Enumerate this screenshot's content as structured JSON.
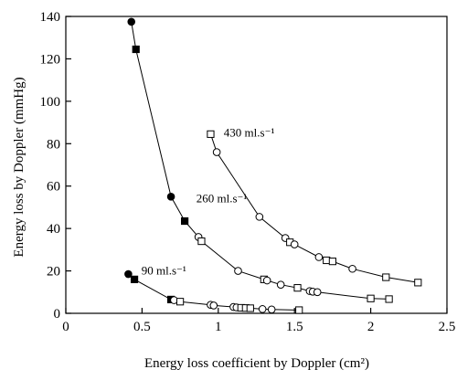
{
  "chart_data": {
    "type": "scatter",
    "xlabel": "Energy loss coefficient  by Doppler  (cm²)",
    "ylabel": "Energy loss by Doppler  (mmHg)",
    "xlim": [
      0,
      2.5
    ],
    "ylim": [
      0,
      140
    ],
    "xticks": [
      "0",
      "0.5",
      "1",
      "1.5",
      "2",
      "2.5"
    ],
    "yticks": [
      "0",
      "20",
      "40",
      "60",
      "80",
      "100",
      "120",
      "140"
    ],
    "grid": false,
    "legend": "none",
    "series": [
      {
        "name": "90 ml.s⁻¹",
        "points": [
          {
            "x": 0.41,
            "y": 18.5,
            "m": "circle-filled"
          },
          {
            "x": 0.45,
            "y": 16,
            "m": "square-filled"
          },
          {
            "x": 0.69,
            "y": 6.5,
            "m": "square-filled"
          },
          {
            "x": 0.71,
            "y": 6.2,
            "m": "circle-open"
          },
          {
            "x": 0.75,
            "y": 5.5,
            "m": "square-open"
          },
          {
            "x": 0.95,
            "y": 4,
            "m": "circle-open"
          },
          {
            "x": 0.97,
            "y": 3.7,
            "m": "circle-open"
          },
          {
            "x": 1.1,
            "y": 3,
            "m": "circle-open"
          },
          {
            "x": 1.12,
            "y": 2.8,
            "m": "circle-open"
          },
          {
            "x": 1.15,
            "y": 2.6,
            "m": "square-open"
          },
          {
            "x": 1.18,
            "y": 2.5,
            "m": "square-open"
          },
          {
            "x": 1.21,
            "y": 2.4,
            "m": "square-open"
          },
          {
            "x": 1.29,
            "y": 2,
            "m": "circle-open"
          },
          {
            "x": 1.35,
            "y": 1.8,
            "m": "circle-open"
          },
          {
            "x": 1.53,
            "y": 1.5,
            "m": "square-open"
          }
        ]
      },
      {
        "name": "260 ml.s⁻¹",
        "points": [
          {
            "x": 0.43,
            "y": 137.5,
            "m": "circle-filled"
          },
          {
            "x": 0.46,
            "y": 124.5,
            "m": "square-filled"
          },
          {
            "x": 0.69,
            "y": 55,
            "m": "circle-filled"
          },
          {
            "x": 0.78,
            "y": 43.5,
            "m": "square-filled"
          },
          {
            "x": 0.87,
            "y": 36,
            "m": "circle-open"
          },
          {
            "x": 0.89,
            "y": 34,
            "m": "square-open"
          },
          {
            "x": 1.13,
            "y": 20,
            "m": "circle-open"
          },
          {
            "x": 1.3,
            "y": 16,
            "m": "square-open"
          },
          {
            "x": 1.32,
            "y": 15.5,
            "m": "circle-open"
          },
          {
            "x": 1.41,
            "y": 13.5,
            "m": "circle-open"
          },
          {
            "x": 1.52,
            "y": 12,
            "m": "square-open"
          },
          {
            "x": 1.6,
            "y": 10.5,
            "m": "circle-open"
          },
          {
            "x": 1.62,
            "y": 10.2,
            "m": "circle-open"
          },
          {
            "x": 1.65,
            "y": 10,
            "m": "circle-open"
          },
          {
            "x": 2.0,
            "y": 7,
            "m": "square-open"
          },
          {
            "x": 2.12,
            "y": 6.7,
            "m": "square-open"
          }
        ]
      },
      {
        "name": "430 ml.s⁻¹",
        "points": [
          {
            "x": 0.95,
            "y": 84.5,
            "m": "square-open"
          },
          {
            "x": 0.99,
            "y": 76,
            "m": "circle-open"
          },
          {
            "x": 1.27,
            "y": 45.5,
            "m": "circle-open"
          },
          {
            "x": 1.44,
            "y": 35.5,
            "m": "circle-open"
          },
          {
            "x": 1.47,
            "y": 33.5,
            "m": "square-open"
          },
          {
            "x": 1.5,
            "y": 32.5,
            "m": "circle-open"
          },
          {
            "x": 1.66,
            "y": 26.5,
            "m": "circle-open"
          },
          {
            "x": 1.71,
            "y": 25,
            "m": "square-open"
          },
          {
            "x": 1.75,
            "y": 24.5,
            "m": "square-open"
          },
          {
            "x": 1.88,
            "y": 21,
            "m": "circle-open"
          },
          {
            "x": 2.1,
            "y": 17,
            "m": "square-open"
          },
          {
            "x": 2.31,
            "y": 14.5,
            "m": "square-open"
          }
        ]
      }
    ]
  }
}
